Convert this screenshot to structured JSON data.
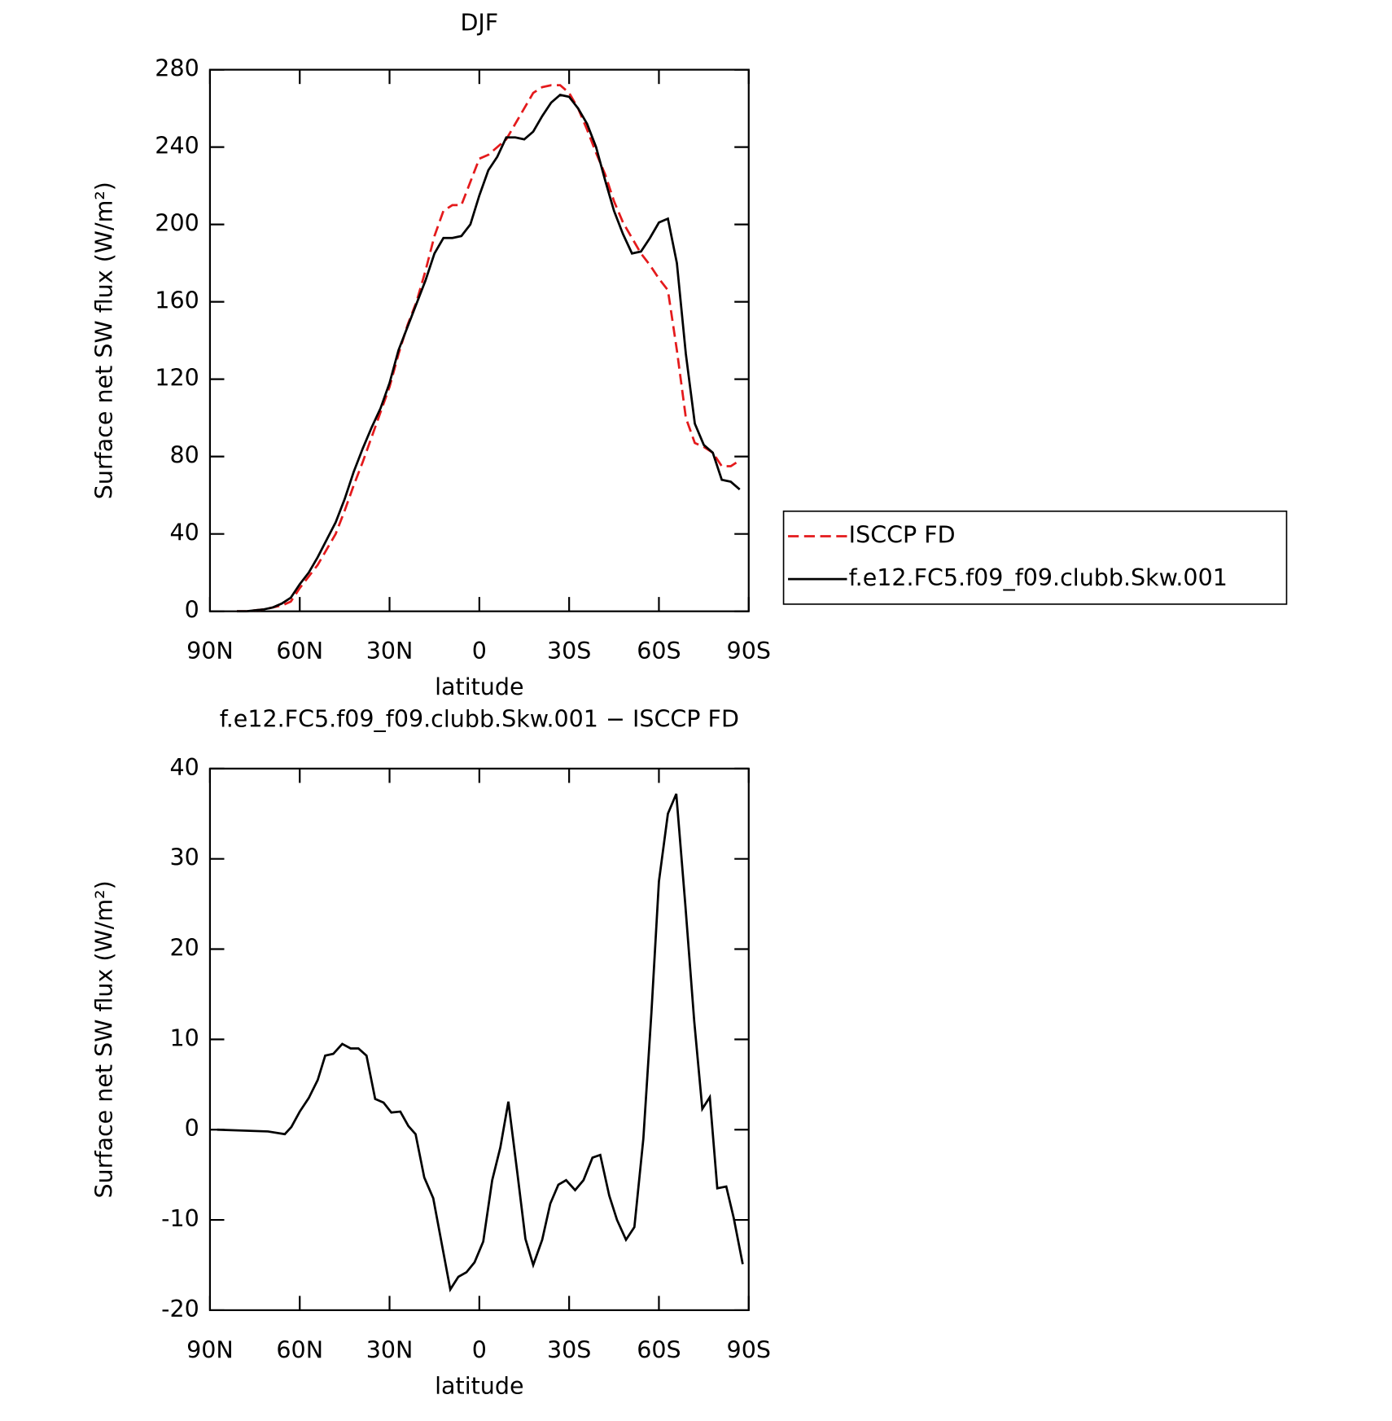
{
  "chart_data": [
    {
      "type": "line",
      "title": "DJF",
      "xlabel": "latitude",
      "ylabel": "Surface net SW flux (W/m²)",
      "xlim": [
        90,
        -90
      ],
      "xticks": [
        {
          "value": 90,
          "label": "90N"
        },
        {
          "value": 60,
          "label": "60N"
        },
        {
          "value": 30,
          "label": "30N"
        },
        0,
        {
          "value": -30,
          "label": "30S"
        },
        {
          "value": -60,
          "label": "60S"
        },
        {
          "value": -90,
          "label": "90S"
        }
      ],
      "ylim": [
        0,
        280
      ],
      "yticks": [
        0,
        40,
        80,
        120,
        160,
        200,
        240,
        280
      ],
      "legend": "right",
      "x": [
        81,
        78,
        75,
        72,
        69,
        66,
        63,
        60,
        57,
        54,
        51,
        48,
        45,
        42,
        39,
        36,
        33,
        30,
        27,
        24,
        21,
        18,
        15,
        12,
        9,
        6,
        3,
        0,
        -3,
        -6,
        -9,
        -12,
        -15,
        -18,
        -21,
        -24,
        -27,
        -30,
        -33,
        -36,
        -39,
        -42,
        -45,
        -48,
        -51,
        -54,
        -57,
        -60,
        -63,
        -66,
        -69,
        -72,
        -75,
        -78,
        -81,
        -84,
        -87
      ],
      "series": [
        {
          "name": "ISCCP FD",
          "color": "#e41a1c",
          "line_style": "dashed",
          "values": [
            0,
            0,
            0.5,
            1,
            2,
            3,
            5,
            12,
            18,
            24,
            32,
            40,
            52,
            65,
            77,
            90,
            103,
            116,
            133,
            148,
            160,
            176,
            194,
            207,
            210,
            210,
            222,
            234,
            236,
            240,
            244,
            252,
            260,
            268,
            271,
            272,
            272,
            268,
            260,
            249,
            237,
            226,
            212,
            201,
            193,
            185,
            179,
            172,
            166,
            135,
            100,
            87,
            85,
            82,
            75,
            75,
            78
          ]
        },
        {
          "name": "f.e12.FC5.f09_f09.clubb.Skw.001",
          "color": "#000000",
          "line_style": "solid",
          "values": [
            0,
            0,
            0.5,
            1,
            2,
            4,
            7,
            14,
            20,
            28,
            37,
            46,
            58,
            72,
            84,
            95,
            105,
            118,
            135,
            147,
            159,
            171,
            185,
            193,
            193,
            194,
            200,
            215,
            228,
            235,
            245,
            245,
            244,
            248,
            256,
            263,
            267,
            266,
            260,
            252,
            240,
            223,
            207,
            195,
            185,
            186,
            193,
            201,
            203,
            180,
            133,
            97,
            86,
            82,
            68,
            67,
            63
          ]
        }
      ]
    },
    {
      "type": "line",
      "title": "f.e12.FC5.f09_f09.clubb.Skw.001 − ISCCP FD",
      "xlabel": "latitude",
      "ylabel": "Surface net SW flux (W/m²)",
      "xlim": [
        90,
        -90
      ],
      "xticks": [
        {
          "value": 90,
          "label": "90N"
        },
        {
          "value": 60,
          "label": "60N"
        },
        {
          "value": 30,
          "label": "30N"
        },
        0,
        {
          "value": -30,
          "label": "30S"
        },
        {
          "value": -60,
          "label": "60S"
        },
        {
          "value": -90,
          "label": "90S"
        }
      ],
      "ylim": [
        -20,
        40
      ],
      "yticks": [
        -20,
        -10,
        0,
        10,
        20,
        30,
        40
      ],
      "x": [
        87.6,
        70.6,
        65,
        62.8,
        60,
        57,
        54,
        51.5,
        48.8,
        45.8,
        43,
        40.4,
        37.7,
        34.8,
        32,
        29.4,
        26.4,
        23.7,
        21.3,
        18.4,
        15.4,
        9.7,
        7,
        4.3,
        1.6,
        -1.3,
        -4.3,
        -7,
        -9.7,
        -12.7,
        -15.4,
        -18,
        -21,
        -23.7,
        -26.4,
        -29,
        -32,
        -34.8,
        -37.8,
        -40.4,
        -43.4,
        -46,
        -49,
        -51.8,
        -54.8,
        -57.5,
        -60,
        -63,
        -65.8,
        -68.8,
        -71.8,
        -74.5,
        -77,
        -79.5,
        -82.5,
        -85,
        -88
      ],
      "series": [
        {
          "color": "#000000",
          "line_style": "solid",
          "values": [
            0,
            -0.2,
            -0.5,
            0.3,
            2,
            3.5,
            5.5,
            8.2,
            8.4,
            9.5,
            9,
            9,
            8.2,
            3.4,
            3,
            1.9,
            2,
            0.4,
            -0.5,
            -5.3,
            -7.6,
            -17.7,
            -16.3,
            -15.8,
            -14.7,
            -12.4,
            -5.6,
            -2,
            3.1,
            -4.8,
            -12.1,
            -15,
            -12.2,
            -8.2,
            -6.1,
            -5.6,
            -6.7,
            -5.6,
            -3.1,
            -2.8,
            -7.3,
            -10,
            -12.2,
            -10.8,
            -1,
            13,
            27.5,
            35,
            37.2,
            25,
            12,
            2.3,
            3.6,
            -6.5,
            -6.3,
            -9.8,
            -14.9
          ]
        }
      ]
    }
  ]
}
